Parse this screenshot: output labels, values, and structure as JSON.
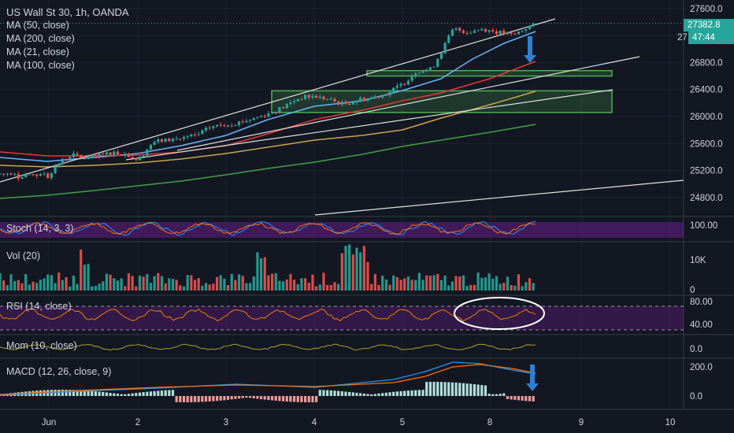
{
  "header": {
    "symbol": "US Wall St 30, 1h, OANDA",
    "indicators": [
      "MA (50, close)",
      "MA (200, close)",
      "MA (21, close)",
      "MA (100, close)"
    ],
    "last_price": "27382.8",
    "countdown": "47:44",
    "partial_price": "27"
  },
  "panes": {
    "stoch": "Stoch (14, 3, 3)",
    "vol": "Vol (20)",
    "rsi": "RSI (14, close)",
    "mom": "Mom (10, close)",
    "macd": "MACD (12, 26, close, 9)"
  },
  "colors": {
    "background": "#131722",
    "up": "#26a69a",
    "down": "#ef5350",
    "zone": "#4caf50",
    "arrow": "#2f80d0",
    "ma21": "#64b5f6",
    "ma50": "#e53935",
    "ma100": "#c9a74a",
    "ma200": "#43a047",
    "rsi": "#f57c00",
    "mom": "#a4a62a",
    "macd": "#2196f3",
    "signal": "#ff6d00"
  },
  "chart_data": [
    {
      "type": "line",
      "title": "US Wall St 30, 1h, OANDA",
      "series_kind": "candlestick",
      "x_ticks": [
        "Jun",
        "2",
        "3",
        "4",
        "5",
        "8",
        "9",
        "10"
      ],
      "y_ticks": [
        24800,
        25200,
        25600,
        26000,
        26400,
        26800,
        27200,
        27600
      ],
      "ylim": [
        24600,
        27750
      ],
      "close_path": [
        [
          "Jun 1 00:00",
          25150
        ],
        [
          "Jun 1 03:00",
          25320
        ],
        [
          "Jun 1 06:00",
          25440
        ],
        [
          "Jun 1 09:00",
          25380
        ],
        [
          "Jun 1 13:00",
          25410
        ],
        [
          "Jun 1 17:00",
          25470
        ],
        [
          "Jun 1 21:00",
          25440
        ],
        [
          "Jun 2 00:00",
          25350
        ],
        [
          "Jun 2 04:00",
          25620
        ],
        [
          "Jun 2 08:00",
          25650
        ],
        [
          "Jun 2 12:00",
          25680
        ],
        [
          "Jun 2 16:00",
          25720
        ],
        [
          "Jun 2 20:00",
          25850
        ],
        [
          "Jun 3 00:00",
          25880
        ],
        [
          "Jun 3 04:00",
          25920
        ],
        [
          "Jun 3 08:00",
          25980
        ],
        [
          "Jun 3 12:00",
          26050
        ],
        [
          "Jun 3 16:00",
          26150
        ],
        [
          "Jun 3 20:00",
          26280
        ],
        [
          "Jun 4 00:00",
          26300
        ],
        [
          "Jun 4 04:00",
          26250
        ],
        [
          "Jun 4 08:00",
          26180
        ],
        [
          "Jun 4 12:00",
          26250
        ],
        [
          "Jun 4 16:00",
          26280
        ],
        [
          "Jun 4 20:00",
          26350
        ],
        [
          "Jun 5 00:00",
          26480
        ],
        [
          "Jun 5 04:00",
          26680
        ],
        [
          "Jun 5 08:00",
          26700
        ],
        [
          "Jun 5 11:00",
          27000
        ],
        [
          "Jun 5 14:00",
          27300
        ],
        [
          "Jun 5 18:00",
          27250
        ],
        [
          "Jun 5 22:00",
          27300
        ],
        [
          "Jun 8 02:00",
          27250
        ],
        [
          "Jun 8 06:00",
          27200
        ],
        [
          "Jun 8 10:00",
          27330
        ],
        [
          "Jun 8 14:00",
          27382.8
        ]
      ],
      "moving_averages": [
        {
          "name": "MA (21, close)",
          "color": "#64b5f6"
        },
        {
          "name": "MA (50, close)",
          "color": "#e53935"
        },
        {
          "name": "MA (100, close)",
          "color": "#c9a74a"
        },
        {
          "name": "MA (200, close)",
          "color": "#43a047"
        }
      ],
      "annotations": {
        "zones": [
          [
            26600,
            26680
          ],
          [
            26060,
            26380
          ]
        ],
        "last_price": 27382.8
      }
    },
    {
      "type": "bar",
      "title": "Vol (20)",
      "y_ticks": [
        "10K",
        "0"
      ]
    },
    {
      "type": "line",
      "title": "Stoch (14, 3, 3)",
      "y_ticks": [
        "100.00"
      ]
    },
    {
      "type": "line",
      "title": "RSI (14, close)",
      "y_ticks": [
        "80.00",
        "40.00"
      ]
    },
    {
      "type": "line",
      "title": "Mom (10, close)",
      "y_ticks": [
        "0.0"
      ]
    },
    {
      "type": "line",
      "title": "MACD (12, 26, close, 9)",
      "y_ticks": [
        "200.0",
        "0.0"
      ]
    }
  ]
}
